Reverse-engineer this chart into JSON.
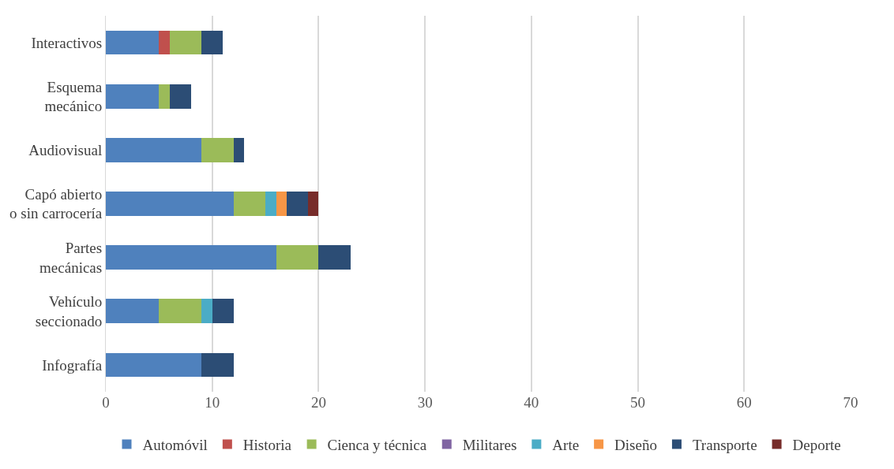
{
  "chart_data": {
    "type": "bar",
    "orientation": "horizontal",
    "stacked": true,
    "categories": [
      "Interactivos",
      "Esquema\nmecánico",
      "Audiovisual",
      "Capó abierto\no sin carrocería",
      "Partes\nmecánicas",
      "Vehículo\nseccionado",
      "Infografía"
    ],
    "series": [
      {
        "name": "Automóvil",
        "color": "#4f81bd",
        "values": [
          5,
          5,
          9,
          12,
          16,
          5,
          9
        ]
      },
      {
        "name": "Historia",
        "color": "#c0504d",
        "values": [
          1,
          0,
          0,
          0,
          0,
          0,
          0
        ]
      },
      {
        "name": "Cienca y técnica",
        "color": "#9bbb59",
        "values": [
          3,
          1,
          3,
          3,
          4,
          4,
          0
        ]
      },
      {
        "name": "Militares",
        "color": "#8064a2",
        "values": [
          0,
          0,
          0,
          0,
          0,
          0,
          0
        ]
      },
      {
        "name": "Arte",
        "color": "#4bacc6",
        "values": [
          0,
          0,
          0,
          1,
          0,
          1,
          0
        ]
      },
      {
        "name": "Diseño",
        "color": "#f79646",
        "values": [
          0,
          0,
          0,
          1,
          0,
          0,
          0
        ]
      },
      {
        "name": "Transporte",
        "color": "#2c4d75",
        "values": [
          2,
          2,
          1,
          2,
          3,
          2,
          3
        ]
      },
      {
        "name": "Deporte",
        "color": "#772c2a",
        "values": [
          0,
          0,
          0,
          1,
          0,
          0,
          0
        ]
      }
    ],
    "xlim": [
      0,
      70
    ],
    "xticks": [
      0,
      10,
      20,
      30,
      40,
      50,
      60,
      70
    ],
    "grid": "x",
    "legend": "bottom"
  }
}
